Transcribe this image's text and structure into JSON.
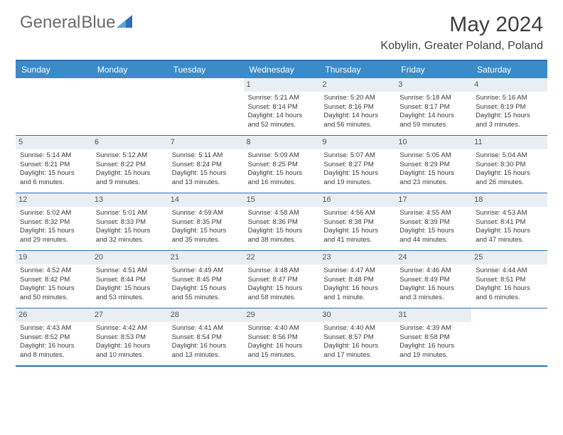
{
  "brand": {
    "part1": "General",
    "part2": "Blue",
    "accent_color": "#2d6fb7"
  },
  "title": "May 2024",
  "location": "Kobylin, Greater Poland, Poland",
  "colors": {
    "header_bg": "#3b8bc9",
    "header_text": "#ffffff",
    "divider": "#2d6fb7",
    "daynum_bg": "#e9eef3",
    "text": "#3a3a3a"
  },
  "day_names": [
    "Sunday",
    "Monday",
    "Tuesday",
    "Wednesday",
    "Thursday",
    "Friday",
    "Saturday"
  ],
  "weeks": [
    [
      {
        "empty": true
      },
      {
        "empty": true
      },
      {
        "empty": true
      },
      {
        "d": "1",
        "sr": "5:21 AM",
        "ss": "8:14 PM",
        "dl": "14 hours and 52 minutes."
      },
      {
        "d": "2",
        "sr": "5:20 AM",
        "ss": "8:16 PM",
        "dl": "14 hours and 56 minutes."
      },
      {
        "d": "3",
        "sr": "5:18 AM",
        "ss": "8:17 PM",
        "dl": "14 hours and 59 minutes."
      },
      {
        "d": "4",
        "sr": "5:16 AM",
        "ss": "8:19 PM",
        "dl": "15 hours and 3 minutes."
      }
    ],
    [
      {
        "d": "5",
        "sr": "5:14 AM",
        "ss": "8:21 PM",
        "dl": "15 hours and 6 minutes."
      },
      {
        "d": "6",
        "sr": "5:12 AM",
        "ss": "8:22 PM",
        "dl": "15 hours and 9 minutes."
      },
      {
        "d": "7",
        "sr": "5:11 AM",
        "ss": "8:24 PM",
        "dl": "15 hours and 13 minutes."
      },
      {
        "d": "8",
        "sr": "5:09 AM",
        "ss": "8:25 PM",
        "dl": "15 hours and 16 minutes."
      },
      {
        "d": "9",
        "sr": "5:07 AM",
        "ss": "8:27 PM",
        "dl": "15 hours and 19 minutes."
      },
      {
        "d": "10",
        "sr": "5:05 AM",
        "ss": "8:29 PM",
        "dl": "15 hours and 23 minutes."
      },
      {
        "d": "11",
        "sr": "5:04 AM",
        "ss": "8:30 PM",
        "dl": "15 hours and 26 minutes."
      }
    ],
    [
      {
        "d": "12",
        "sr": "5:02 AM",
        "ss": "8:32 PM",
        "dl": "15 hours and 29 minutes."
      },
      {
        "d": "13",
        "sr": "5:01 AM",
        "ss": "8:33 PM",
        "dl": "15 hours and 32 minutes."
      },
      {
        "d": "14",
        "sr": "4:59 AM",
        "ss": "8:35 PM",
        "dl": "15 hours and 35 minutes."
      },
      {
        "d": "15",
        "sr": "4:58 AM",
        "ss": "8:36 PM",
        "dl": "15 hours and 38 minutes."
      },
      {
        "d": "16",
        "sr": "4:56 AM",
        "ss": "8:38 PM",
        "dl": "15 hours and 41 minutes."
      },
      {
        "d": "17",
        "sr": "4:55 AM",
        "ss": "8:39 PM",
        "dl": "15 hours and 44 minutes."
      },
      {
        "d": "18",
        "sr": "4:53 AM",
        "ss": "8:41 PM",
        "dl": "15 hours and 47 minutes."
      }
    ],
    [
      {
        "d": "19",
        "sr": "4:52 AM",
        "ss": "8:42 PM",
        "dl": "15 hours and 50 minutes."
      },
      {
        "d": "20",
        "sr": "4:51 AM",
        "ss": "8:44 PM",
        "dl": "15 hours and 53 minutes."
      },
      {
        "d": "21",
        "sr": "4:49 AM",
        "ss": "8:45 PM",
        "dl": "15 hours and 55 minutes."
      },
      {
        "d": "22",
        "sr": "4:48 AM",
        "ss": "8:47 PM",
        "dl": "15 hours and 58 minutes."
      },
      {
        "d": "23",
        "sr": "4:47 AM",
        "ss": "8:48 PM",
        "dl": "16 hours and 1 minute."
      },
      {
        "d": "24",
        "sr": "4:46 AM",
        "ss": "8:49 PM",
        "dl": "16 hours and 3 minutes."
      },
      {
        "d": "25",
        "sr": "4:44 AM",
        "ss": "8:51 PM",
        "dl": "16 hours and 6 minutes."
      }
    ],
    [
      {
        "d": "26",
        "sr": "4:43 AM",
        "ss": "8:52 PM",
        "dl": "16 hours and 8 minutes."
      },
      {
        "d": "27",
        "sr": "4:42 AM",
        "ss": "8:53 PM",
        "dl": "16 hours and 10 minutes."
      },
      {
        "d": "28",
        "sr": "4:41 AM",
        "ss": "8:54 PM",
        "dl": "16 hours and 13 minutes."
      },
      {
        "d": "29",
        "sr": "4:40 AM",
        "ss": "8:56 PM",
        "dl": "16 hours and 15 minutes."
      },
      {
        "d": "30",
        "sr": "4:40 AM",
        "ss": "8:57 PM",
        "dl": "16 hours and 17 minutes."
      },
      {
        "d": "31",
        "sr": "4:39 AM",
        "ss": "8:58 PM",
        "dl": "16 hours and 19 minutes."
      },
      {
        "empty": true
      }
    ]
  ],
  "labels": {
    "sunrise": "Sunrise:",
    "sunset": "Sunset:",
    "daylight": "Daylight:"
  }
}
